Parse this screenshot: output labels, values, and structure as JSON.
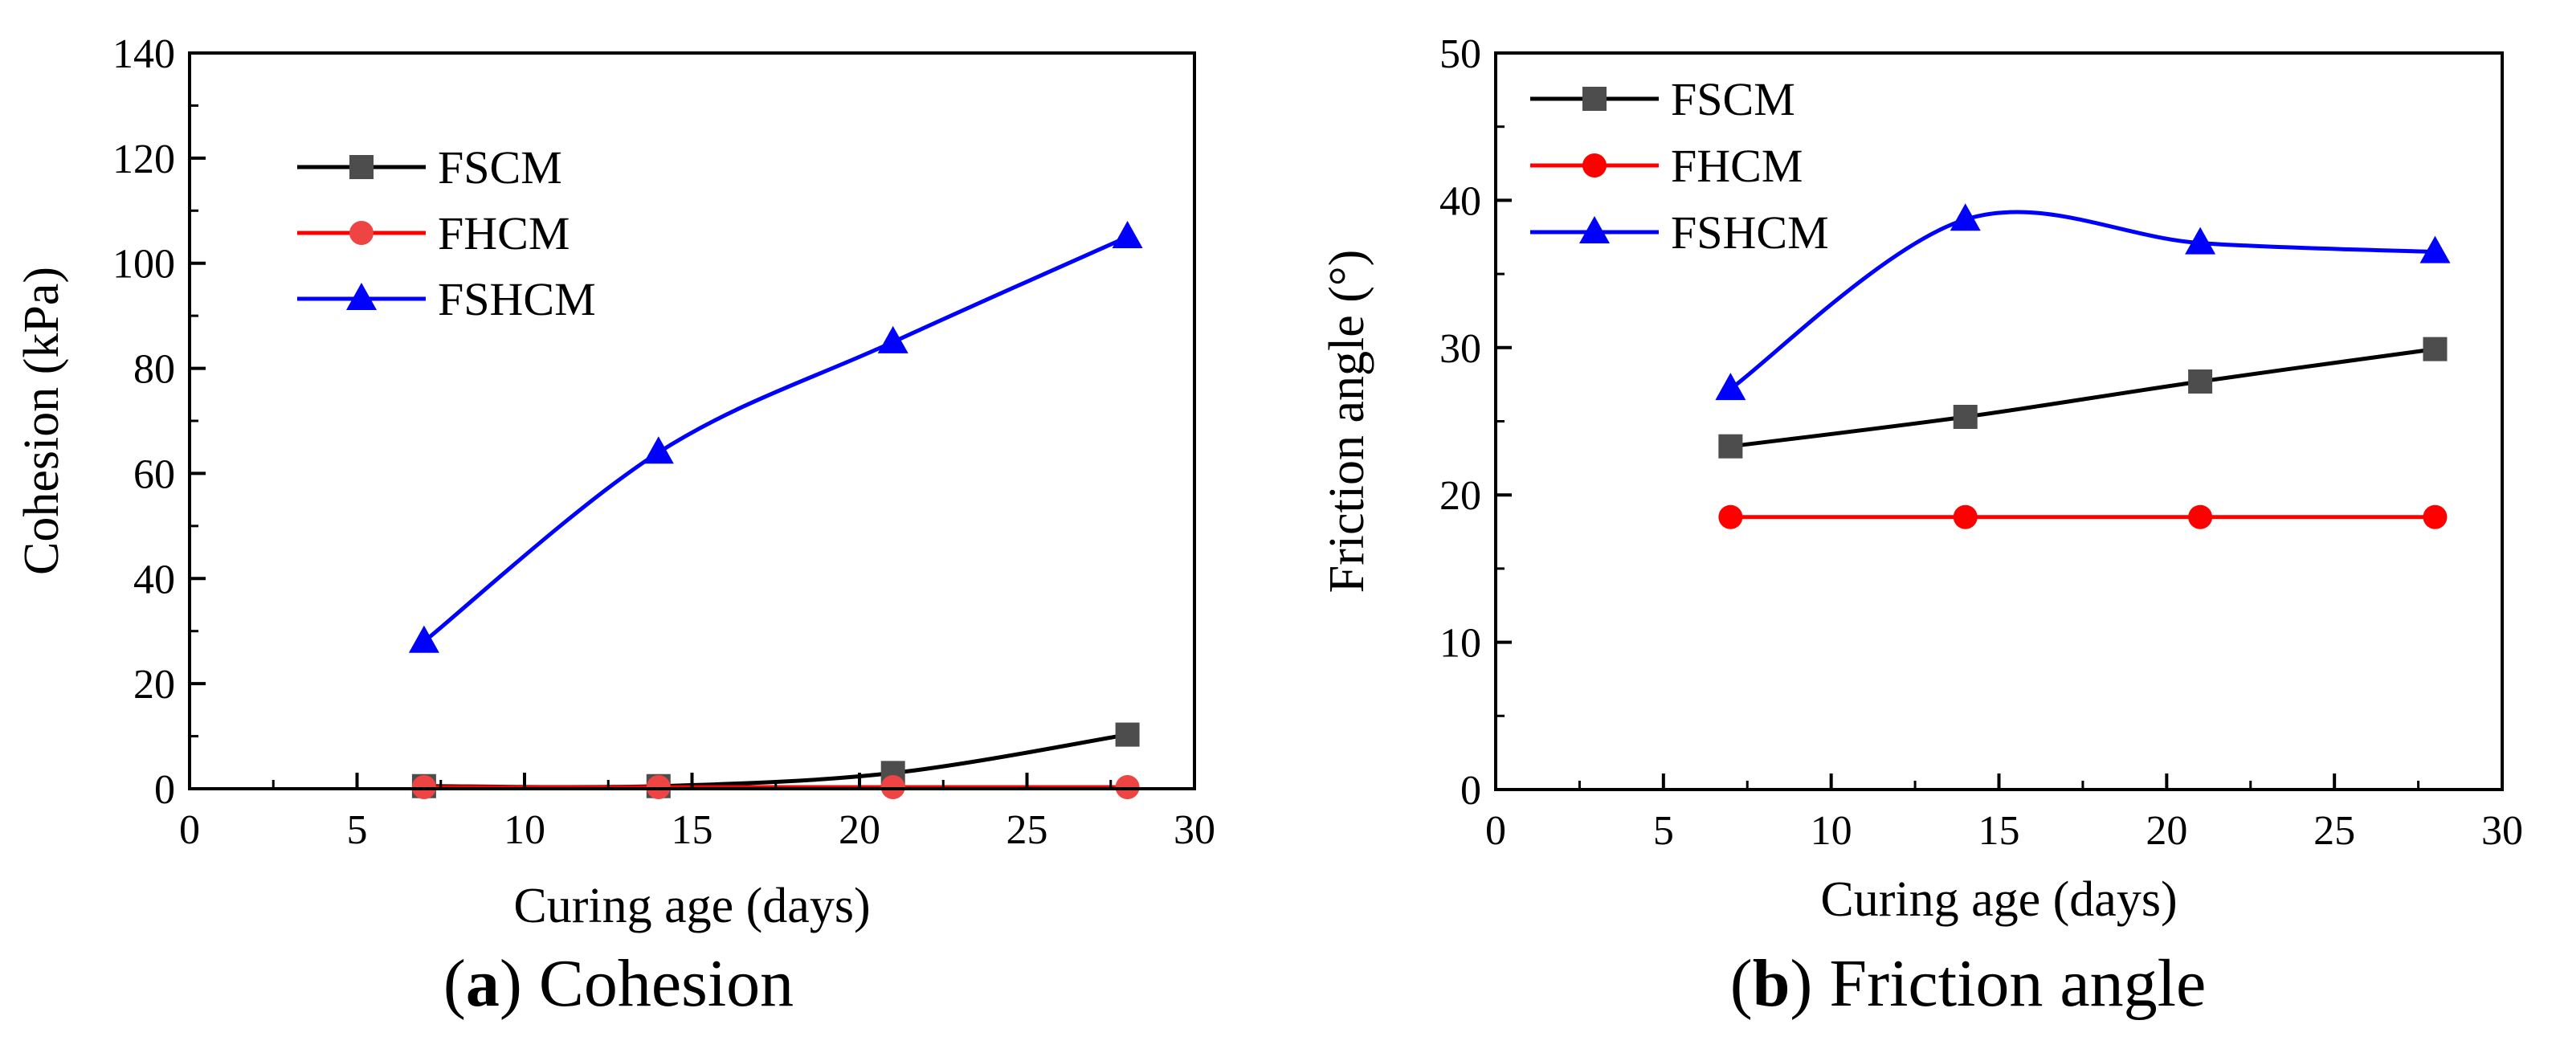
{
  "chart_data": [
    {
      "type": "line",
      "panel_label": "a",
      "caption": "Cohesion",
      "xlabel": "Curing age (days)",
      "ylabel": "Cohesion (kPa)",
      "xlim": [
        0,
        30
      ],
      "ylim": [
        0,
        140
      ],
      "x_ticks": [
        0,
        5,
        10,
        15,
        20,
        25,
        30
      ],
      "y_ticks": [
        0,
        20,
        40,
        60,
        80,
        100,
        120,
        140
      ],
      "legend": "upper-left",
      "series": [
        {
          "name": "FSCM",
          "marker": "square",
          "color": "#000000",
          "marker_color": "#4d4d4d",
          "x": [
            7,
            14,
            21,
            28
          ],
          "y": [
            0.5,
            0.5,
            3,
            10.3
          ]
        },
        {
          "name": "FHCM",
          "marker": "circle",
          "color": "#ff0000",
          "marker_color": "#ee4444",
          "x": [
            7,
            14,
            21,
            28
          ],
          "y": [
            0.3,
            0.3,
            0.3,
            0.3
          ]
        },
        {
          "name": "FSHCM",
          "marker": "triangle",
          "color": "#0000ff",
          "marker_color": "#0000ff",
          "x": [
            7,
            14,
            21,
            28
          ],
          "y": [
            28,
            64,
            85,
            105
          ]
        }
      ]
    },
    {
      "type": "line",
      "panel_label": "b",
      "caption": "Friction angle",
      "xlabel": "Curing age (days)",
      "ylabel": "Friction angle (°)",
      "xlim": [
        0,
        30
      ],
      "ylim": [
        0,
        50
      ],
      "x_ticks": [
        0,
        5,
        10,
        15,
        20,
        25,
        30
      ],
      "y_ticks": [
        0,
        10,
        20,
        30,
        40,
        50
      ],
      "legend": "upper-left",
      "series": [
        {
          "name": "FSCM",
          "marker": "square",
          "color": "#000000",
          "marker_color": "#4d4d4d",
          "x": [
            7,
            14,
            21,
            28
          ],
          "y": [
            23.3,
            25.3,
            27.7,
            29.9
          ]
        },
        {
          "name": "FHCM",
          "marker": "circle",
          "color": "#ff0000",
          "marker_color": "#ff0000",
          "x": [
            7,
            14,
            21,
            28
          ],
          "y": [
            18.5,
            18.5,
            18.5,
            18.5
          ]
        },
        {
          "name": "FSHCM",
          "marker": "triangle",
          "color": "#0000ff",
          "marker_color": "#0000ff",
          "x": [
            7,
            14,
            21,
            28
          ],
          "y": [
            27.2,
            38.7,
            37.1,
            36.5
          ]
        }
      ]
    }
  ]
}
